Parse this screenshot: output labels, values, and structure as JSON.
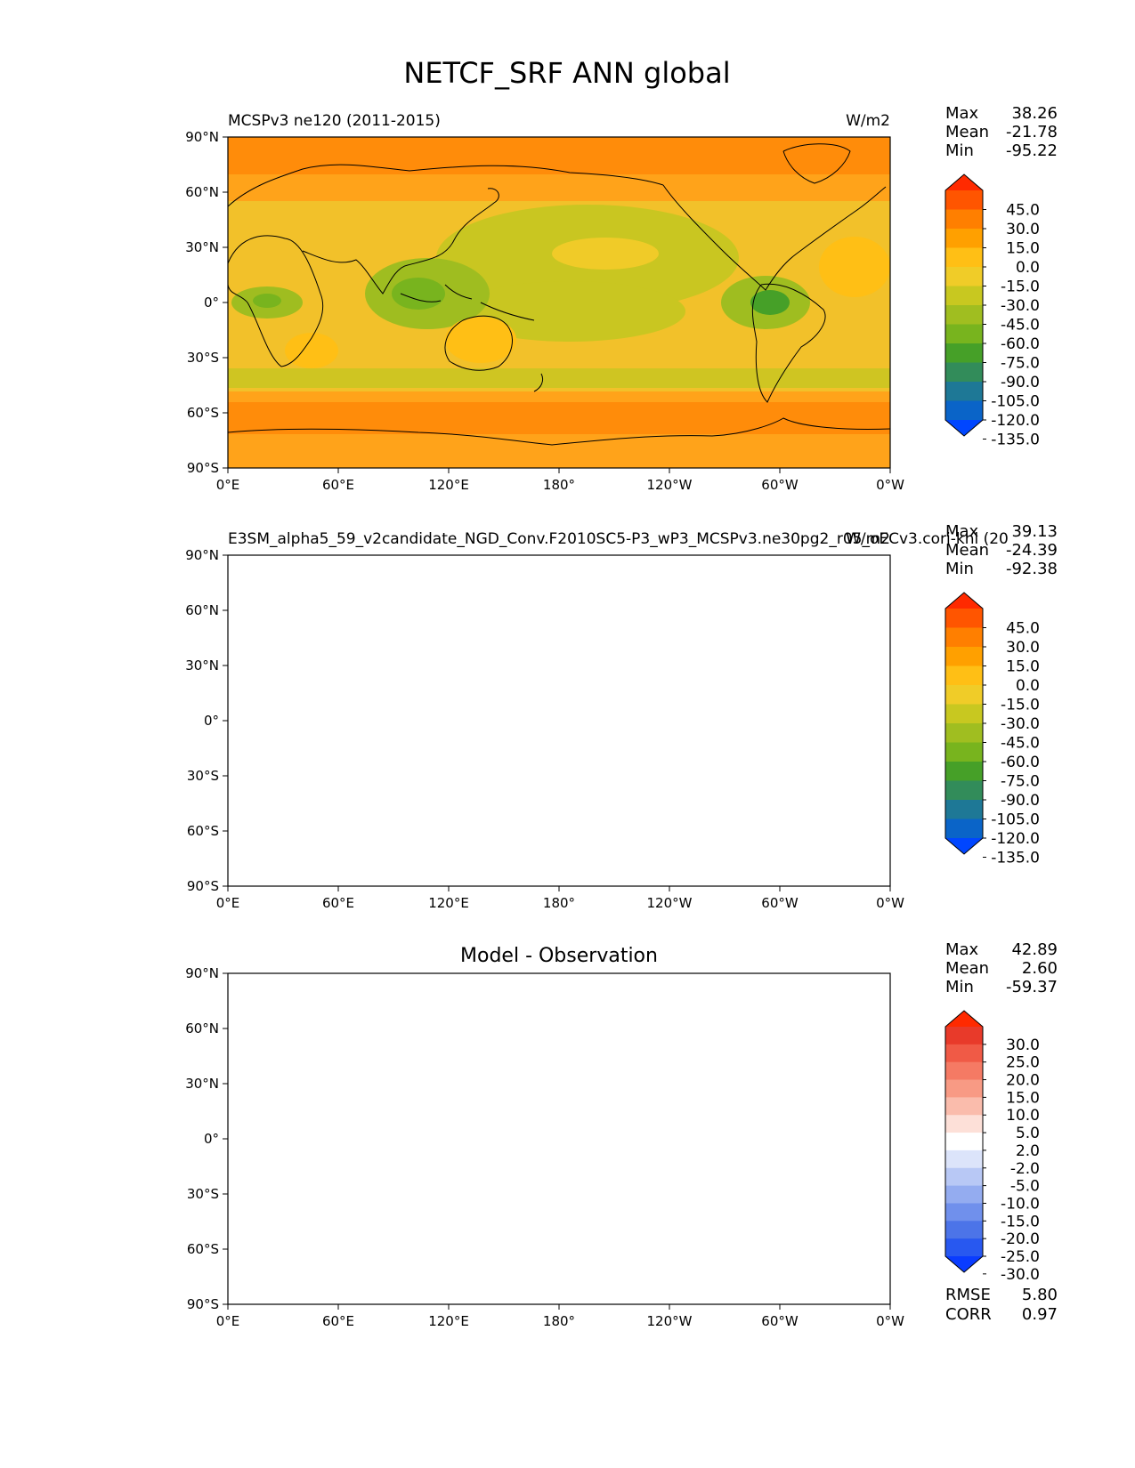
{
  "title": "NETCF_SRF ANN global",
  "lat_ticks": [
    "90°N",
    "60°N",
    "30°N",
    "0°",
    "30°S",
    "60°S",
    "90°S"
  ],
  "lon_ticks": [
    "0°E",
    "60°E",
    "120°E",
    "180°",
    "120°W",
    "60°W",
    "0°W"
  ],
  "panels": [
    {
      "id": "test",
      "left_title": "MCSPv3 ne120 (2011-2015)",
      "center_title": "",
      "units": "W/m2",
      "stats": {
        "labels": [
          "Max",
          "Mean",
          "Min"
        ],
        "values": [
          "38.26",
          "-21.78",
          "-95.22"
        ]
      },
      "colorbar_labels": [
        "45.0",
        "30.0",
        "15.0",
        "0.0",
        "-15.0",
        "-30.0",
        "-45.0",
        "-60.0",
        "-75.0",
        "-90.0",
        "-105.0",
        "-120.0",
        "-135.0"
      ],
      "colorbar_colors": [
        "#ff2a00",
        "#ff5500",
        "#ff7f00",
        "#ffa000",
        "#ffbf15",
        "#f0cc28",
        "#c8c820",
        "#a0be20",
        "#78b41e",
        "#46a028",
        "#328c5a",
        "#1e7896",
        "#0a64c8",
        "#0046ff"
      ],
      "field": "abs"
    },
    {
      "id": "reference",
      "left_title": "E3SM_alpha5_59_v2candidate_NGD_Conv.F2010SC5-P3_wP3_MCSPv3.ne30pg2_r05_oECv3.cori-knl (20",
      "center_title": "",
      "units": "W/m2",
      "stats": {
        "labels": [
          "Max",
          "Mean",
          "Min"
        ],
        "values": [
          "39.13",
          "-24.39",
          "-92.38"
        ]
      },
      "colorbar_labels": [
        "45.0",
        "30.0",
        "15.0",
        "0.0",
        "-15.0",
        "-30.0",
        "-45.0",
        "-60.0",
        "-75.0",
        "-90.0",
        "-105.0",
        "-120.0",
        "-135.0"
      ],
      "colorbar_colors": [
        "#ff2a00",
        "#ff5500",
        "#ff7f00",
        "#ffa000",
        "#ffbf15",
        "#f0cc28",
        "#c8c820",
        "#a0be20",
        "#78b41e",
        "#46a028",
        "#328c5a",
        "#1e7896",
        "#0a64c8",
        "#0046ff"
      ],
      "field": "abs"
    },
    {
      "id": "diff",
      "left_title": "",
      "center_title": "Model - Observation",
      "units": "",
      "stats": {
        "labels": [
          "Max",
          "Mean",
          "Min"
        ],
        "values": [
          "42.89",
          "2.60",
          "-59.37"
        ]
      },
      "colorbar_labels": [
        "30.0",
        "25.0",
        "20.0",
        "15.0",
        "10.0",
        "5.0",
        "2.0",
        "-2.0",
        "-5.0",
        "-10.0",
        "-15.0",
        "-20.0",
        "-25.0",
        "-30.0"
      ],
      "colorbar_colors": [
        "#ff2a00",
        "#e83a2a",
        "#f05a46",
        "#f57a64",
        "#f89a84",
        "#fabcac",
        "#fde0d8",
        "#ffffff",
        "#dce4fa",
        "#b8c8f5",
        "#94acf0",
        "#7090ec",
        "#4c74e8",
        "#2858f0",
        "#0a3cff"
      ],
      "field": "diff",
      "footer_stats": {
        "labels": [
          "RMSE",
          "CORR"
        ],
        "values": [
          "5.80",
          "0.97"
        ]
      }
    }
  ],
  "colors": {
    "coastline": "#000000",
    "axis": "#000000"
  }
}
